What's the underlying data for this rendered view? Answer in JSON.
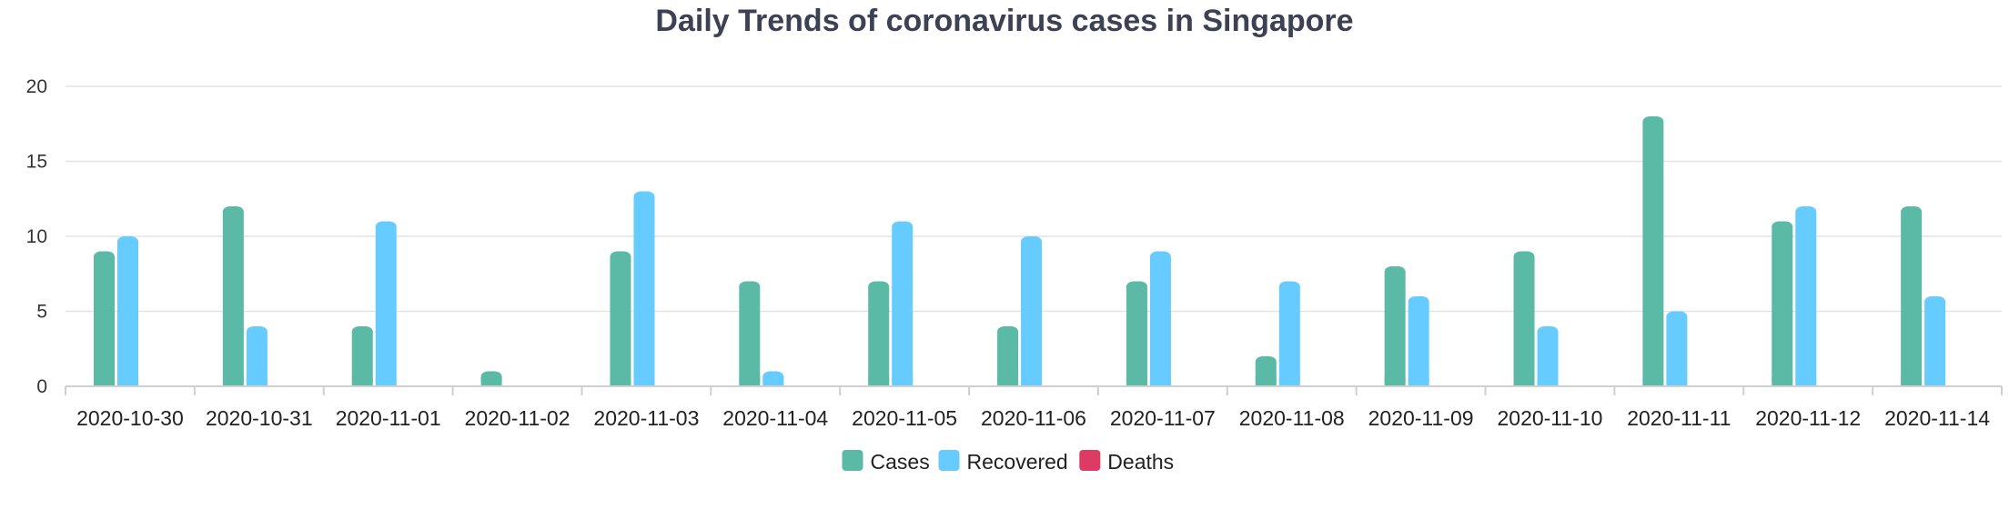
{
  "chart_data": {
    "type": "bar",
    "title": "Daily Trends of coronavirus cases in Singapore",
    "categories": [
      "2020-10-30",
      "2020-10-31",
      "2020-11-01",
      "2020-11-02",
      "2020-11-03",
      "2020-11-04",
      "2020-11-05",
      "2020-11-06",
      "2020-11-07",
      "2020-11-08",
      "2020-11-09",
      "2020-11-10",
      "2020-11-11",
      "2020-11-12",
      "2020-11-14"
    ],
    "series": [
      {
        "name": "Cases",
        "color": "#5bbaa5",
        "values": [
          9,
          12,
          4,
          1,
          9,
          7,
          7,
          4,
          7,
          2,
          8,
          9,
          18,
          11,
          12
        ]
      },
      {
        "name": "Recovered",
        "color": "#66ccff",
        "values": [
          10,
          4,
          11,
          0,
          13,
          1,
          11,
          10,
          9,
          7,
          6,
          4,
          5,
          12,
          6
        ]
      },
      {
        "name": "Deaths",
        "color": "#dd3a64",
        "values": [
          0,
          0,
          0,
          0,
          0,
          0,
          0,
          0,
          0,
          0,
          0,
          0,
          0,
          0,
          0
        ]
      }
    ],
    "yticks": [
      "0",
      "5",
      "10",
      "15",
      "20"
    ],
    "ylim": [
      0,
      20
    ],
    "xlabel": "",
    "ylabel": "",
    "grid": true,
    "legend_position": "bottom"
  }
}
